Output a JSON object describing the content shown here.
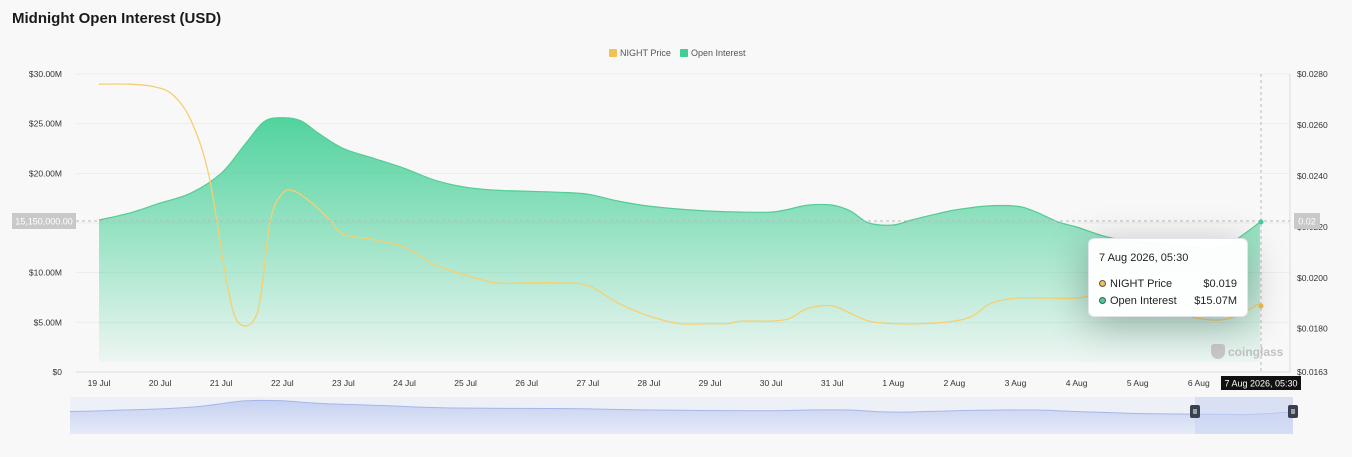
{
  "title": "Midnight Open Interest (USD)",
  "legend": {
    "price_label": "NIGHT Price",
    "oi_label": "Open Interest"
  },
  "colors": {
    "price": "#f2c14e",
    "price_line": "#f5d070",
    "oi": "#3fcf94",
    "oi_line": "#54cc93",
    "navigator": "#c9d3f3"
  },
  "crosshair": {
    "y_label": "15,150,000.00",
    "y2_label": "0.02",
    "x_label": "7 Aug 2026, 05:30"
  },
  "tooltip": {
    "date": "7 Aug 2026, 05:30",
    "rows": [
      {
        "label": "NIGHT Price",
        "value": "$0.019"
      },
      {
        "label": "Open Interest",
        "value": "$15.07M"
      }
    ]
  },
  "watermark": "coinglass",
  "chart_data": {
    "type": "area",
    "title": "Midnight Open Interest (USD)",
    "legend_position": "top-center",
    "grid": true,
    "categories": [
      "19 Jul",
      "20 Jul",
      "21 Jul",
      "22 Jul",
      "23 Jul",
      "24 Jul",
      "25 Jul",
      "26 Jul",
      "27 Jul",
      "28 Jul",
      "29 Jul",
      "30 Jul",
      "31 Jul",
      "1 Aug",
      "2 Aug",
      "3 Aug",
      "4 Aug",
      "5 Aug",
      "6 Aug",
      "7 Aug 2026, 05:30"
    ],
    "y_left": {
      "ticks": [
        "$0",
        "$5.00M",
        "$10.00M",
        "$15.00M",
        "$20.00M",
        "$25.00M",
        "$30.00M"
      ],
      "range": [
        0,
        30000000
      ]
    },
    "y_right": {
      "ticks": [
        "$0.0163",
        "$0.0180",
        "$0.0200",
        "$0.0220",
        "$0.0240",
        "$0.0260",
        "$0.0280"
      ],
      "range": [
        0.0163,
        0.028
      ]
    },
    "series": [
      {
        "name": "Open Interest",
        "axis": "left",
        "x": [
          0,
          0.5,
          1,
          1.5,
          2,
          2.4,
          2.7,
          3,
          3.3,
          3.6,
          4,
          4.5,
          5,
          5.5,
          6,
          6.5,
          7,
          7.5,
          8,
          8.5,
          9,
          9.5,
          10,
          10.5,
          11,
          11.3,
          11.6,
          12,
          12.3,
          12.6,
          13,
          13.3,
          13.7,
          14,
          14.5,
          15,
          15.3,
          15.7,
          16,
          16.5,
          17,
          17.5,
          18,
          18.3,
          18.6,
          19
        ],
        "values": [
          15.3,
          16.0,
          17.0,
          18.0,
          20.0,
          23.0,
          25.2,
          25.6,
          25.3,
          24.0,
          22.5,
          21.5,
          20.5,
          19.3,
          18.6,
          18.3,
          18.2,
          18.1,
          17.9,
          17.2,
          16.7,
          16.4,
          16.2,
          16.1,
          16.1,
          16.4,
          16.8,
          16.8,
          16.2,
          15.0,
          14.8,
          15.3,
          15.9,
          16.3,
          16.7,
          16.7,
          16.2,
          15.1,
          14.6,
          13.6,
          13.1,
          12.9,
          12.5,
          12.5,
          13.3,
          15.07
        ]
      },
      {
        "name": "NIGHT Price",
        "axis": "right",
        "x": [
          0,
          0.5,
          0.9,
          1.2,
          1.5,
          1.8,
          2.1,
          2.3,
          2.6,
          2.8,
          3.0,
          3.2,
          3.5,
          3.8,
          4,
          4.5,
          5,
          5.5,
          6,
          6.5,
          7,
          7.5,
          8,
          8.5,
          9,
          9.5,
          10,
          10.3,
          10.5,
          11,
          11.3,
          11.6,
          12,
          12.3,
          12.6,
          13,
          13.5,
          14,
          14.3,
          14.6,
          15,
          15.5,
          16,
          16.3,
          16.6,
          17,
          17.5,
          18,
          18.5,
          19
        ],
        "values": [
          0.0276,
          0.0276,
          0.0275,
          0.0272,
          0.0262,
          0.024,
          0.0197,
          0.0182,
          0.0187,
          0.0222,
          0.0233,
          0.0234,
          0.0229,
          0.0222,
          0.0217,
          0.0215,
          0.0212,
          0.0205,
          0.0201,
          0.0198,
          0.0198,
          0.0198,
          0.0197,
          0.019,
          0.0185,
          0.0182,
          0.0182,
          0.0182,
          0.0183,
          0.0183,
          0.0184,
          0.0188,
          0.0189,
          0.0186,
          0.0183,
          0.0182,
          0.0182,
          0.0183,
          0.0185,
          0.019,
          0.0192,
          0.0192,
          0.0192,
          0.0193,
          0.0192,
          0.0191,
          0.0188,
          0.0184,
          0.0184,
          0.019
        ]
      }
    ]
  }
}
